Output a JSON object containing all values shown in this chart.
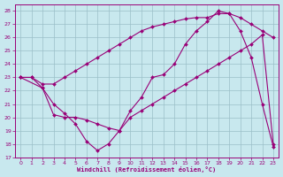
{
  "xlabel": "Windchill (Refroidissement éolien,°C)",
  "bg_color": "#c8e8ee",
  "line_color": "#990077",
  "grid_color": "#9bbfc8",
  "xlim_min": -0.5,
  "xlim_max": 23.5,
  "ylim_min": 17,
  "ylim_max": 28.5,
  "yticks": [
    17,
    18,
    19,
    20,
    21,
    22,
    23,
    24,
    25,
    26,
    27,
    28
  ],
  "xticks": [
    0,
    1,
    2,
    3,
    4,
    5,
    6,
    7,
    8,
    9,
    10,
    11,
    12,
    13,
    14,
    15,
    16,
    17,
    18,
    19,
    20,
    21,
    22,
    23
  ],
  "line1_x": [
    0,
    1,
    2,
    3,
    4,
    5,
    6,
    7,
    8,
    9,
    10,
    11,
    12,
    13,
    14,
    15,
    16,
    17,
    18,
    19,
    20,
    21,
    22,
    23
  ],
  "line1_y": [
    23.0,
    23.0,
    22.2,
    21.0,
    20.3,
    19.5,
    18.2,
    17.5,
    18.0,
    19.0,
    20.5,
    21.5,
    23.0,
    23.2,
    24.0,
    25.5,
    26.5,
    27.2,
    28.0,
    27.8,
    26.5,
    24.5,
    21.0,
    17.8
  ],
  "line2_x": [
    0,
    1,
    2,
    3,
    4,
    5,
    6,
    7,
    8,
    9,
    10,
    11,
    12,
    13,
    14,
    15,
    16,
    17,
    18,
    19,
    20,
    21,
    22,
    23
  ],
  "line2_y": [
    23.0,
    23.0,
    22.5,
    22.5,
    23.0,
    23.5,
    24.0,
    24.5,
    25.0,
    25.5,
    26.0,
    26.5,
    26.8,
    27.0,
    27.2,
    27.4,
    27.5,
    27.5,
    27.8,
    27.8,
    27.5,
    27.0,
    26.5,
    26.0
  ],
  "line3_x": [
    0,
    2,
    3,
    4,
    5,
    6,
    7,
    8,
    9,
    10,
    11,
    12,
    13,
    14,
    15,
    16,
    17,
    18,
    19,
    20,
    21,
    22,
    23
  ],
  "line3_y": [
    23.0,
    22.2,
    20.2,
    20.0,
    20.0,
    19.8,
    19.5,
    19.2,
    19.0,
    20.0,
    20.5,
    21.0,
    21.5,
    22.0,
    22.5,
    23.0,
    23.5,
    24.0,
    24.5,
    25.0,
    25.5,
    26.2,
    18.0
  ]
}
